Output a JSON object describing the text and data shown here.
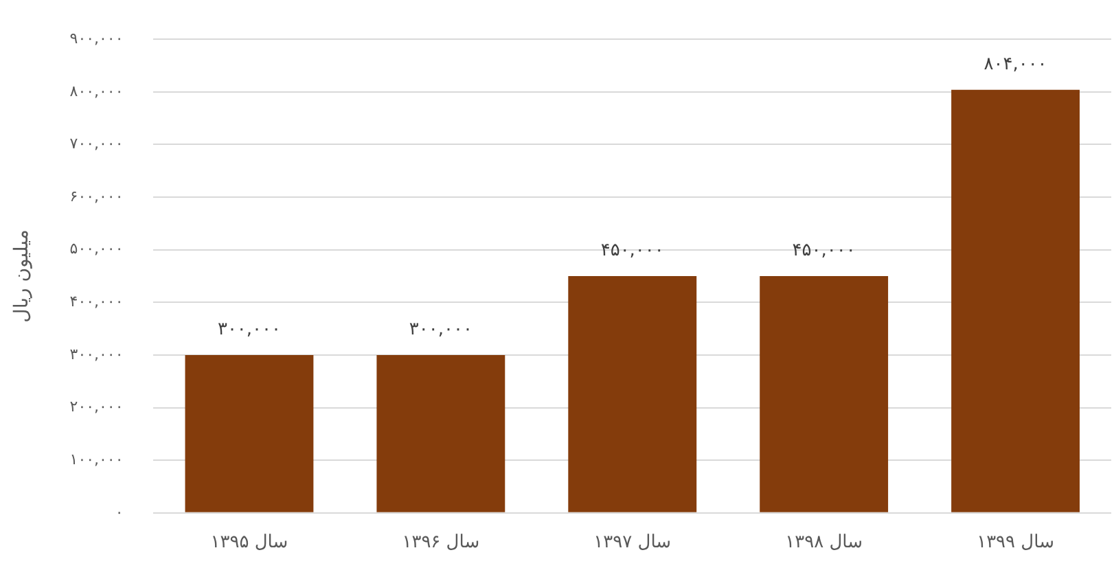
{
  "chart_data": {
    "type": "bar",
    "ylabel": "میلیون ریال",
    "categories": [
      "سال ۱۳۹۵",
      "سال ۱۳۹۶",
      "سال ۱۳۹۷",
      "سال ۱۳۹۸",
      "سال ۱۳۹۹"
    ],
    "values": [
      300000,
      300000,
      450000,
      450000,
      804000
    ],
    "value_labels": [
      "۳۰۰,۰۰۰",
      "۳۰۰,۰۰۰",
      "۴۵۰,۰۰۰",
      "۴۵۰,۰۰۰",
      "۸۰۴,۰۰۰"
    ],
    "color": "#843c0c",
    "ylim": [
      0,
      900000
    ],
    "yticks": [
      {
        "value": 0,
        "label": "۰"
      },
      {
        "value": 100000,
        "label": "۱۰۰,۰۰۰"
      },
      {
        "value": 200000,
        "label": "۲۰۰,۰۰۰"
      },
      {
        "value": 300000,
        "label": "۳۰۰,۰۰۰"
      },
      {
        "value": 400000,
        "label": "۴۰۰,۰۰۰"
      },
      {
        "value": 500000,
        "label": "۵۰۰,۰۰۰"
      },
      {
        "value": 600000,
        "label": "۶۰۰,۰۰۰"
      },
      {
        "value": 700000,
        "label": "۷۰۰,۰۰۰"
      },
      {
        "value": 800000,
        "label": "۸۰۰,۰۰۰"
      },
      {
        "value": 900000,
        "label": "۹۰۰,۰۰۰"
      }
    ],
    "grid": "y"
  }
}
